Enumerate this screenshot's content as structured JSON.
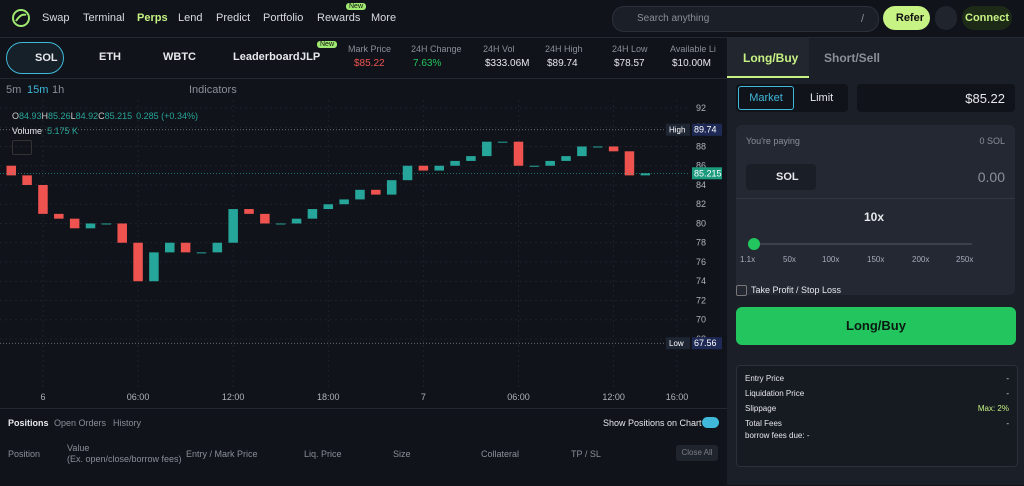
{
  "nav": {
    "items": [
      "Swap",
      "Terminal",
      "Perps",
      "Lend",
      "Predict",
      "Portfolio",
      "Rewards",
      "More"
    ],
    "new_badge": "New",
    "search": "Search anything",
    "search_key": "/",
    "refer": "Refer",
    "connect": "Connect"
  },
  "markets": {
    "tabs": [
      "SOL",
      "ETH",
      "WBTC"
    ],
    "leaderboard": "Leaderboard",
    "jlp": "JLP",
    "jlp_badge": "New",
    "stats": [
      {
        "label": "Mark Price",
        "value": "$85.22"
      },
      {
        "label": "24H Change",
        "value": "7.63%"
      },
      {
        "label": "24H Vol",
        "value": "$333.06M"
      },
      {
        "label": "24H High",
        "value": "$89.74"
      },
      {
        "label": "24H Low",
        "value": "$78.57"
      },
      {
        "label": "Available Li",
        "value": "$10.00M"
      }
    ]
  },
  "toolbar": {
    "intervals": [
      "5m",
      "15m",
      "1h"
    ],
    "indicators": "Indicators"
  },
  "legend": {
    "ohlc": [
      "O",
      "84.93",
      "H",
      "85.26",
      "L",
      "84.92",
      "C",
      "85.215",
      "0.285 (+0.34%)"
    ],
    "volume": "Volume",
    "volume_value": "5.175 K"
  },
  "price_chart": {
    "type": "candlestick",
    "x": [
      -2,
      -1,
      0,
      1,
      2,
      3,
      4,
      5,
      6,
      7,
      8,
      9,
      10,
      11,
      12,
      13,
      14,
      15,
      16,
      17,
      18,
      19,
      20,
      21,
      22,
      23,
      24,
      25,
      26,
      27,
      28,
      29,
      30,
      31,
      32,
      33,
      34,
      35,
      36,
      37,
      38
    ],
    "open": [
      86,
      85,
      84,
      81,
      80.5,
      79.5,
      80,
      80,
      78,
      74,
      77,
      78,
      77,
      77,
      78,
      81.5,
      81,
      80,
      80,
      80.5,
      81.5,
      82,
      82.5,
      83.5,
      83,
      84.5,
      86,
      85.5,
      86,
      86.5,
      87,
      88.5,
      88.5,
      86,
      86,
      86.5,
      87,
      88,
      88,
      87.5,
      85
    ],
    "close": [
      85,
      84,
      81,
      80.5,
      79.5,
      80,
      80,
      78,
      74,
      77,
      78,
      77,
      77,
      78,
      81.5,
      81,
      80,
      80,
      80.5,
      81.5,
      82,
      82.5,
      83.5,
      83,
      84.5,
      86,
      85.5,
      86,
      86.5,
      87,
      88.5,
      88.5,
      86,
      86,
      86.5,
      87,
      88,
      88,
      87.5,
      85,
      85.215
    ],
    "up_color": "#26a69a",
    "down_color": "#ef5350",
    "xlim": [
      -2.71,
      40.82
    ],
    "ylim": [
      62.7,
      92.83
    ],
    "xticks": [
      {
        "value": 0,
        "label": "6"
      },
      {
        "value": 6,
        "label": "06:00"
      },
      {
        "value": 12,
        "label": "12:00"
      },
      {
        "value": 18,
        "label": "18:00"
      },
      {
        "value": 24,
        "label": "7"
      },
      {
        "value": 30,
        "label": "06:00"
      },
      {
        "value": 36,
        "label": "12:00"
      },
      {
        "value": 40,
        "label": "16:00"
      }
    ],
    "yticks": [
      68,
      70,
      72,
      74,
      76,
      78,
      80,
      82,
      84,
      86,
      88,
      90,
      92
    ],
    "high_label": "High",
    "high": 89.74,
    "low_label": "Low",
    "low": 67.56,
    "last": 85.215
  },
  "positions": {
    "tabs": [
      "Positions",
      "Open Orders",
      "History"
    ],
    "show_on_chart": "Show Positions on Chart",
    "columns": [
      "Position",
      "Value",
      "Entry / Mark Price",
      "Liq. Price",
      "Size",
      "Collateral",
      "TP / SL"
    ],
    "value_sub": "(Ex. open/close/borrow fees)",
    "close_all": "Close All"
  },
  "order": {
    "tabs": [
      "Long/Buy",
      "Short/Sell"
    ],
    "types": [
      "Market",
      "Limit"
    ],
    "price": "$85.22",
    "paying": "You're paying",
    "balance": "0 SOL",
    "token": "SOL",
    "amount": "0.00",
    "leverage": "10x",
    "leverage_ticks": [
      "1.1x",
      "50x",
      "100x",
      "150x",
      "200x",
      "250x"
    ],
    "tpsl": "Take Profit / Stop Loss",
    "submit": "Long/Buy",
    "info": [
      {
        "label": "Entry Price",
        "value": "-"
      },
      {
        "label": "Liquidation Price",
        "value": "-"
      },
      {
        "label": "Slippage",
        "value": "Max: 2%"
      },
      {
        "label": "Total Fees",
        "value": "-"
      }
    ],
    "borrow": "borrow fees due: -"
  }
}
